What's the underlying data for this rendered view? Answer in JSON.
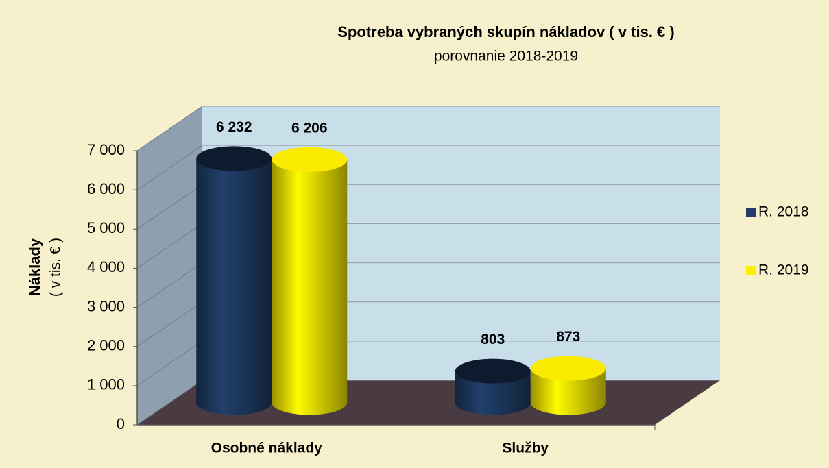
{
  "chart_data": {
    "type": "bar3d",
    "title": "Spotreba vybraných skupín nákladov ( v tis. € )",
    "subtitle": "porovnanie 2018-2019",
    "ylabel": [
      "Náklady",
      "( v tis. € )"
    ],
    "categories": [
      "Osobné náklady",
      "Služby"
    ],
    "series": [
      {
        "name": "R. 2018",
        "color": "#1f3d66",
        "values": [
          6232,
          803
        ],
        "value_labels": [
          "6 232",
          "803"
        ]
      },
      {
        "name": "R. 2019",
        "color": "#fff000",
        "values": [
          6206,
          873
        ],
        "value_labels": [
          "6 206",
          "873"
        ]
      }
    ],
    "ylim": [
      0,
      7000
    ],
    "yticks": [
      0,
      {
        "value": 1000,
        "label": "1 000"
      },
      {
        "value": 2000,
        "label": "2 000"
      },
      {
        "value": 3000,
        "label": "3 000"
      },
      {
        "value": 4000,
        "label": "4 000"
      },
      {
        "value": 5000,
        "label": "5 000"
      },
      {
        "value": 6000,
        "label": "6 000"
      },
      {
        "value": 7000,
        "label": "7 000"
      }
    ],
    "grid": true,
    "legend": "right"
  }
}
